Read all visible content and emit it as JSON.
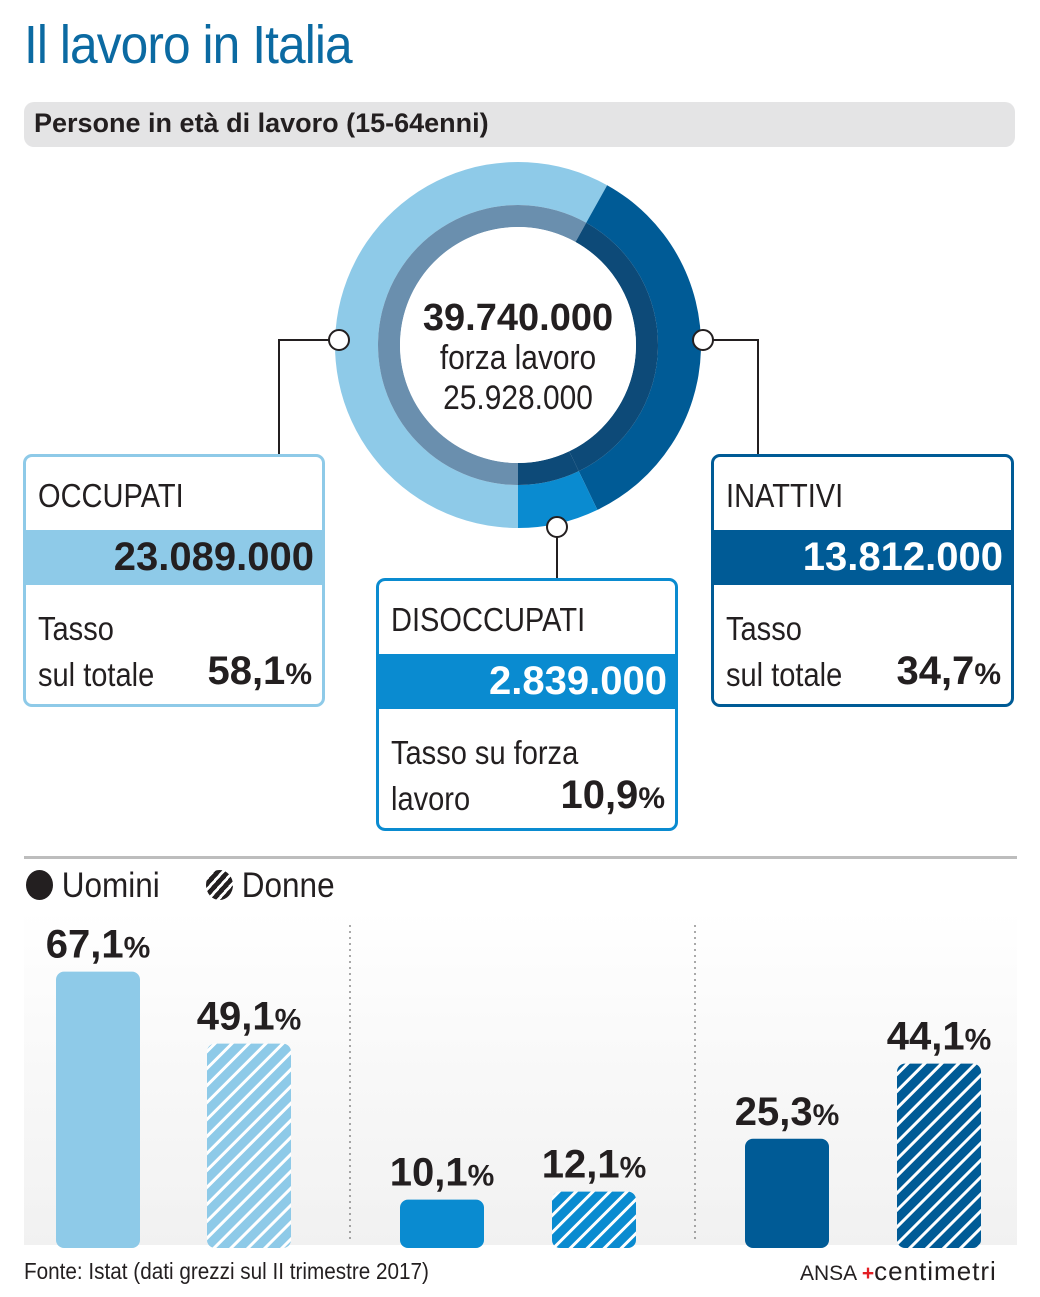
{
  "title": "Il lavoro in Italia",
  "subtitle": "Persone in età di lavoro (15-64enni)",
  "center": {
    "total": "39.740.000",
    "label": "forza lavoro",
    "value": "25.928.000"
  },
  "boxes": {
    "occupati": {
      "label": "OCCUPATI",
      "value": "23.089.000",
      "rate_line1": "Tasso",
      "rate_line2": "sul totale",
      "rate": "58,1",
      "pct": "%"
    },
    "disoccupati": {
      "label": "DISOCCUPATI",
      "value": "2.839.000",
      "rate_line1": "Tasso su forza",
      "rate_line2": "lavoro",
      "rate": "10,9",
      "pct": "%"
    },
    "inattivi": {
      "label": "INATTIVI",
      "value": "13.812.000",
      "rate_line1": "Tasso",
      "rate_line2": "sul totale",
      "rate": "34,7",
      "pct": "%"
    }
  },
  "legend": {
    "men": "Uomini",
    "women": "Donne"
  },
  "footer": "Fonte: Istat (dati grezzi sul II trimestre 2017)",
  "logo": {
    "ansa": "ANSA",
    "brand": "centimetri"
  },
  "colors": {
    "occupati": "#8ecae8",
    "disoccupati": "#0a8bd0",
    "inattivi": "#005b96",
    "title": "#0b6aa2"
  },
  "chart_data": [
    {
      "type": "pie",
      "title": "Persone in età di lavoro (15-64enni)",
      "categories": [
        "Occupati",
        "Disoccupati",
        "Inattivi"
      ],
      "values": [
        23089000,
        2839000,
        13812000
      ],
      "total": 39740000
    },
    {
      "type": "bar",
      "categories": [
        "Occupati",
        "Disoccupati",
        "Inattivi"
      ],
      "series": [
        {
          "name": "Uomini",
          "values": [
            67.1,
            10.1,
            25.3
          ]
        },
        {
          "name": "Donne",
          "values": [
            49.1,
            12.1,
            44.1
          ]
        }
      ],
      "labels": [
        [
          "67,1",
          "49,1"
        ],
        [
          "10,1",
          "12,1"
        ],
        [
          "25,3",
          "44,1"
        ]
      ],
      "unit": "%",
      "ylim": [
        0,
        70
      ]
    }
  ]
}
